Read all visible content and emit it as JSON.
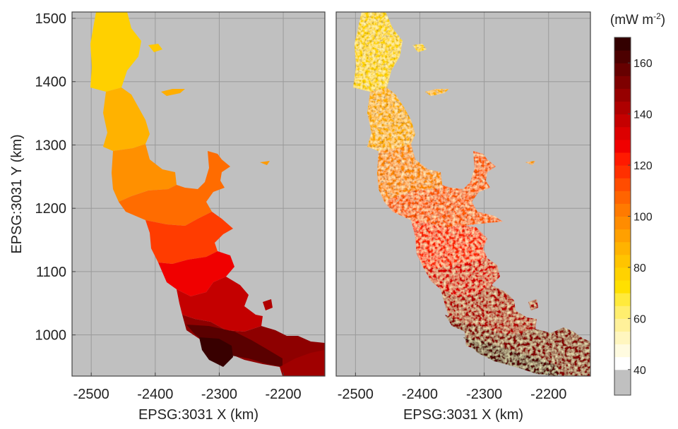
{
  "chart_data": [
    {
      "type": "heatmap",
      "panel": "left",
      "xlabel": "EPSG:3031 X (km)",
      "ylabel": "EPSG:3031 Y (km)",
      "xlim": [
        -2530,
        -2135
      ],
      "ylim": [
        935,
        1510
      ],
      "xticks": [
        -2500,
        -2400,
        -2300,
        -2200
      ],
      "yticks": [
        1000,
        1100,
        1200,
        1300,
        1400,
        1500
      ],
      "grid": true,
      "description_of_field": "smooth, large-scale banded values along the peninsula",
      "values_along_peninsula": [
        {
          "x": -2490,
          "y": 1460,
          "value": 84
        },
        {
          "x": -2470,
          "y": 1340,
          "value": 95
        },
        {
          "x": -2420,
          "y": 1240,
          "value": 106
        },
        {
          "x": -2380,
          "y": 1180,
          "value": 112
        },
        {
          "x": -2350,
          "y": 1110,
          "value": 125
        },
        {
          "x": -2300,
          "y": 1040,
          "value": 145
        },
        {
          "x": -2250,
          "y": 980,
          "value": 155
        },
        {
          "x": -2160,
          "y": 960,
          "value": 150
        }
      ]
    },
    {
      "type": "heatmap",
      "panel": "right",
      "xlabel": "EPSG:3031 X (km)",
      "ylabel": "",
      "xlim": [
        -2530,
        -2135
      ],
      "ylim": [
        935,
        1510
      ],
      "xticks": [
        -2500,
        -2400,
        -2300,
        -2200
      ],
      "grid": true,
      "description_of_field": "fine-scale, noisy values following terrain",
      "values_along_peninsula": [
        {
          "x": -2490,
          "y": 1460,
          "value": 80
        },
        {
          "x": -2470,
          "y": 1340,
          "value": 95
        },
        {
          "x": -2420,
          "y": 1240,
          "value": 110
        },
        {
          "x": -2380,
          "y": 1180,
          "value": 120
        },
        {
          "x": -2350,
          "y": 1110,
          "value": 135
        },
        {
          "x": -2300,
          "y": 1040,
          "value": 148
        },
        {
          "x": -2250,
          "y": 980,
          "value": 152
        },
        {
          "x": -2160,
          "y": 960,
          "value": 150
        }
      ]
    }
  ],
  "colorbar": {
    "unit_label": "(mW m",
    "unit_exponent": "-2",
    "unit_close": ")",
    "range": [
      35,
      170
    ],
    "nodata_color": "#c0c0c0",
    "ticks": [
      40,
      60,
      80,
      100,
      120,
      140,
      160
    ],
    "levels": [
      {
        "from": 30,
        "to": 40,
        "color": "#c0c0c0"
      },
      {
        "from": 40,
        "to": 45,
        "color": "#ffffff"
      },
      {
        "from": 45,
        "to": 50,
        "color": "#fffbe0"
      },
      {
        "from": 50,
        "to": 55,
        "color": "#fff6bf"
      },
      {
        "from": 55,
        "to": 60,
        "color": "#fff19a"
      },
      {
        "from": 60,
        "to": 65,
        "color": "#ffee6e"
      },
      {
        "from": 65,
        "to": 70,
        "color": "#ffea3c"
      },
      {
        "from": 70,
        "to": 75,
        "color": "#ffe000"
      },
      {
        "from": 75,
        "to": 80,
        "color": "#ffd200"
      },
      {
        "from": 80,
        "to": 85,
        "color": "#ffc400"
      },
      {
        "from": 85,
        "to": 90,
        "color": "#ffb300"
      },
      {
        "from": 90,
        "to": 95,
        "color": "#ffa000"
      },
      {
        "from": 95,
        "to": 100,
        "color": "#ff8c00"
      },
      {
        "from": 100,
        "to": 105,
        "color": "#ff7a00"
      },
      {
        "from": 105,
        "to": 110,
        "color": "#ff6400"
      },
      {
        "from": 110,
        "to": 115,
        "color": "#ff4c00"
      },
      {
        "from": 115,
        "to": 120,
        "color": "#ff3000"
      },
      {
        "from": 120,
        "to": 125,
        "color": "#ff1a00"
      },
      {
        "from": 125,
        "to": 130,
        "color": "#f00000"
      },
      {
        "from": 130,
        "to": 135,
        "color": "#dc0000"
      },
      {
        "from": 135,
        "to": 140,
        "color": "#c50000"
      },
      {
        "from": 140,
        "to": 145,
        "color": "#ae0000"
      },
      {
        "from": 145,
        "to": 150,
        "color": "#960000"
      },
      {
        "from": 150,
        "to": 155,
        "color": "#7e0000"
      },
      {
        "from": 155,
        "to": 160,
        "color": "#660000"
      },
      {
        "from": 160,
        "to": 165,
        "color": "#4c0000"
      },
      {
        "from": 165,
        "to": 170,
        "color": "#330000"
      }
    ]
  }
}
